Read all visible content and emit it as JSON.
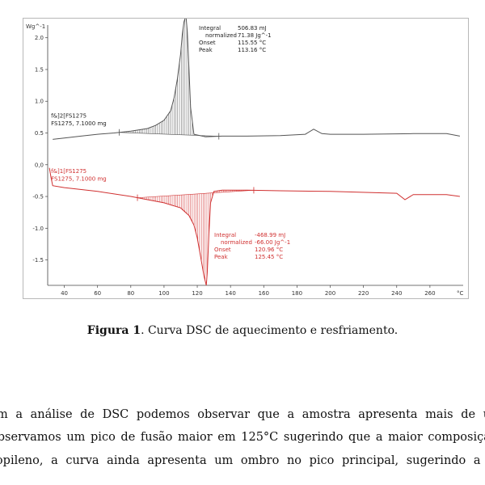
{
  "chart_data": {
    "type": "line",
    "xlabel": "°C",
    "ylabel": "Wg^-1",
    "xlim": [
      30,
      280
    ],
    "ylim": [
      -1.9,
      2.2
    ],
    "x_ticks": [
      40,
      60,
      80,
      100,
      120,
      140,
      160,
      180,
      200,
      220,
      240,
      260
    ],
    "y_ticks": [
      -1.5,
      -1.0,
      -0.5,
      0.0,
      0.5,
      1.0,
      1.5,
      2.0
    ],
    "y_tick_labels": [
      "-1.5",
      "-1.0",
      "-0.5",
      "0,0",
      "0.5",
      "1.0",
      "1.5",
      "2.0"
    ],
    "series": [
      {
        "name": "f&]2[FS1275",
        "sample": "FS1275, 7.1000 mg",
        "color": "#555555",
        "x": [
          33,
          40,
          50,
          60,
          70,
          80,
          90,
          95,
          100,
          104,
          106,
          108,
          110,
          111,
          112,
          113.16,
          114,
          115,
          116,
          118,
          125,
          135,
          150,
          170,
          185,
          190,
          195,
          200,
          220,
          250,
          270,
          278
        ],
        "y": [
          0.4,
          0.42,
          0.45,
          0.48,
          0.5,
          0.53,
          0.57,
          0.62,
          0.7,
          0.85,
          1.05,
          1.35,
          1.75,
          2.05,
          2.25,
          2.35,
          2.1,
          1.5,
          0.9,
          0.48,
          0.44,
          0.45,
          0.45,
          0.46,
          0.48,
          0.56,
          0.49,
          0.48,
          0.48,
          0.49,
          0.49,
          0.45
        ]
      },
      {
        "name": "f&]1[FS1275",
        "sample": "FS1275, 7.1000 mg",
        "color": "#d03030",
        "x": [
          31,
          32,
          33,
          40,
          60,
          80,
          90,
          100,
          110,
          115,
          118,
          120,
          122,
          124,
          125.45,
          126,
          127,
          128,
          130,
          135,
          150,
          170,
          200,
          240,
          245,
          250,
          270,
          278
        ],
        "y": [
          -0.05,
          -0.2,
          -0.33,
          -0.36,
          -0.42,
          -0.5,
          -0.55,
          -0.6,
          -0.68,
          -0.8,
          -0.95,
          -1.15,
          -1.45,
          -1.75,
          -1.9,
          -1.7,
          -1.1,
          -0.6,
          -0.42,
          -0.4,
          -0.4,
          -0.41,
          -0.42,
          -0.45,
          -0.55,
          -0.47,
          -0.47,
          -0.5
        ]
      }
    ],
    "annotations": {
      "heating": {
        "integral_label": "Integral",
        "integral_value": "506.83 mJ",
        "normalized_label": "normalized",
        "normalized_value": "71.38 Jg^-1",
        "onset_label": "Onset",
        "onset_value": "115.55 °C",
        "peak_label": "Peak",
        "peak_value": "113.16 °C",
        "range": [
          73,
          133
        ]
      },
      "cooling": {
        "integral_label": "Integral",
        "integral_value": "-468.99 mJ",
        "normalized_label": "normalized",
        "normalized_value": "-66.00 Jg^-1",
        "onset_label": "Onset",
        "onset_value": "120.96 °C",
        "peak_label": "Peak",
        "peak_value": "125.45 °C",
        "range": [
          84,
          154
        ]
      }
    }
  },
  "caption": {
    "label": "Figura 1",
    "text": ". Curva DSC de aquecimento e resfriamento."
  },
  "body_text": {
    "line1": "m a análise de DSC podemos observar que a amostra apresenta mais de um",
    "line2": "observamos um pico de fusão maior em 125°C sugerindo que a maior composiçã",
    "line3": "ropileno, a curva ainda apresenta um ombro no pico principal, sugerindo a pre"
  }
}
